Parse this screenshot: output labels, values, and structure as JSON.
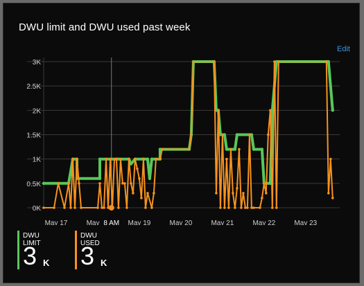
{
  "title": "DWU limit and DWU used past week",
  "edit_label": "Edit",
  "hover_label": "8 AM",
  "legend": [
    {
      "label": "DWU LIMIT",
      "value": "3",
      "unit": "K",
      "color": "#57c85a"
    },
    {
      "label": "DWU USED",
      "value": "3",
      "unit": "K",
      "color": "#f7921e"
    }
  ],
  "chart_data": {
    "type": "line",
    "ylim": [
      0,
      3000
    ],
    "xlim": [
      16.7,
      23.82
    ],
    "y_ticks": [
      0,
      500,
      1000,
      1500,
      2000,
      2500,
      3000
    ],
    "y_tick_labels": [
      "0K",
      "0.5K",
      "1K",
      "1.5K",
      "2K",
      "2.5K",
      "3K"
    ],
    "x_ticks": [
      17,
      18,
      19,
      20,
      21,
      22,
      23
    ],
    "x_tick_labels": [
      "May 17",
      "May 18",
      "May 19",
      "May 20",
      "May 21",
      "May 22",
      "May 23"
    ],
    "hover_x": 18.33,
    "series": [
      {
        "name": "DWU LIMIT",
        "color": "#57c85a",
        "points": [
          [
            16.7,
            500
          ],
          [
            17.3,
            500
          ],
          [
            17.4,
            1000
          ],
          [
            17.5,
            1000
          ],
          [
            17.5,
            600
          ],
          [
            18.05,
            600
          ],
          [
            18.05,
            1000
          ],
          [
            18.45,
            1000
          ],
          [
            18.5,
            1000
          ],
          [
            18.75,
            1000
          ],
          [
            18.8,
            900
          ],
          [
            18.9,
            1000
          ],
          [
            19.1,
            1000
          ],
          [
            19.2,
            1000
          ],
          [
            19.25,
            600
          ],
          [
            19.3,
            1000
          ],
          [
            19.5,
            1000
          ],
          [
            19.5,
            1200
          ],
          [
            20.2,
            1200
          ],
          [
            20.25,
            1500
          ],
          [
            20.3,
            3000
          ],
          [
            20.75,
            3000
          ],
          [
            20.8,
            3000
          ],
          [
            20.85,
            2000
          ],
          [
            20.9,
            2000
          ],
          [
            20.95,
            1500
          ],
          [
            21.05,
            1500
          ],
          [
            21.1,
            1200
          ],
          [
            21.3,
            1200
          ],
          [
            21.35,
            1500
          ],
          [
            21.7,
            1500
          ],
          [
            21.75,
            1200
          ],
          [
            21.95,
            1200
          ],
          [
            22.0,
            500
          ],
          [
            22.15,
            500
          ],
          [
            22.2,
            2000
          ],
          [
            22.3,
            3000
          ],
          [
            23.5,
            3000
          ],
          [
            23.55,
            3000
          ],
          [
            23.65,
            2000
          ]
        ]
      },
      {
        "name": "DWU USED",
        "color": "#f7921e",
        "points": [
          [
            16.7,
            0
          ],
          [
            16.95,
            0
          ],
          [
            17.05,
            500
          ],
          [
            17.2,
            0
          ],
          [
            17.3,
            500
          ],
          [
            17.35,
            0
          ],
          [
            17.4,
            1000
          ],
          [
            17.45,
            0
          ],
          [
            17.5,
            1000
          ],
          [
            17.55,
            500
          ],
          [
            17.6,
            0
          ],
          [
            18.0,
            0
          ],
          [
            18.05,
            500
          ],
          [
            18.1,
            0
          ],
          [
            18.15,
            0
          ],
          [
            18.2,
            1000
          ],
          [
            18.25,
            0
          ],
          [
            18.3,
            1000
          ],
          [
            18.35,
            0
          ],
          [
            18.4,
            1000
          ],
          [
            18.45,
            1000
          ],
          [
            18.5,
            0
          ],
          [
            18.55,
            1000
          ],
          [
            18.6,
            500
          ],
          [
            18.65,
            500
          ],
          [
            18.7,
            0
          ],
          [
            18.75,
            1000
          ],
          [
            18.8,
            500
          ],
          [
            18.85,
            300
          ],
          [
            18.9,
            1000
          ],
          [
            18.95,
            800
          ],
          [
            19.0,
            600
          ],
          [
            19.05,
            200
          ],
          [
            19.1,
            1000
          ],
          [
            19.15,
            0
          ],
          [
            19.2,
            300
          ],
          [
            19.3,
            0
          ],
          [
            19.35,
            300
          ],
          [
            19.4,
            1000
          ],
          [
            19.5,
            1000
          ],
          [
            19.55,
            1200
          ],
          [
            20.2,
            1200
          ],
          [
            20.25,
            1500
          ],
          [
            20.3,
            3000
          ],
          [
            20.8,
            3000
          ],
          [
            20.85,
            300
          ],
          [
            20.9,
            2000
          ],
          [
            20.95,
            0
          ],
          [
            21.0,
            1500
          ],
          [
            21.05,
            0
          ],
          [
            21.1,
            1000
          ],
          [
            21.15,
            0
          ],
          [
            21.2,
            1200
          ],
          [
            21.25,
            300
          ],
          [
            21.3,
            0
          ],
          [
            21.35,
            400
          ],
          [
            21.4,
            1200
          ],
          [
            21.45,
            0
          ],
          [
            21.5,
            300
          ],
          [
            21.55,
            0
          ],
          [
            21.6,
            0
          ],
          [
            21.65,
            1500
          ],
          [
            21.7,
            0
          ],
          [
            21.75,
            0
          ],
          [
            21.9,
            0
          ],
          [
            21.95,
            200
          ],
          [
            22.0,
            500
          ],
          [
            22.05,
            300
          ],
          [
            22.1,
            1500
          ],
          [
            22.15,
            2000
          ],
          [
            22.2,
            0
          ],
          [
            22.25,
            3000
          ],
          [
            22.3,
            0
          ],
          [
            22.35,
            3000
          ],
          [
            23.5,
            3000
          ],
          [
            23.55,
            300
          ],
          [
            23.6,
            1000
          ],
          [
            23.65,
            200
          ]
        ]
      }
    ]
  }
}
